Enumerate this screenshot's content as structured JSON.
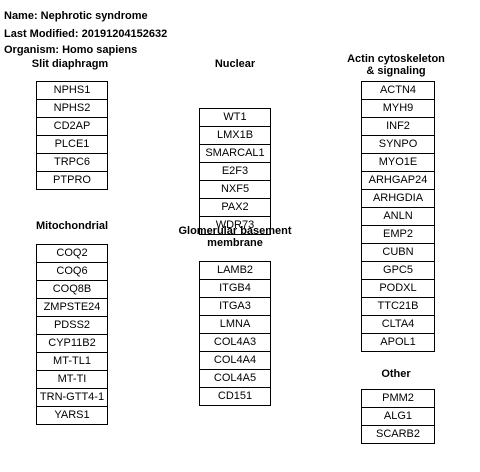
{
  "header": {
    "name": "Name: Nephrotic syndrome",
    "last_modified": "Last Modified: 20191204152632",
    "organism": "Organism: Homo sapiens"
  },
  "groups": {
    "slit": {
      "title": "Slit diaphragm",
      "genes": [
        "NPHS1",
        "NPHS2",
        "CD2AP",
        "PLCE1",
        "TRPC6",
        "PTPRO"
      ]
    },
    "mito": {
      "title": "Mitochondrial",
      "genes": [
        "COQ2",
        "COQ6",
        "COQ8B",
        "ZMPSTE24",
        "PDSS2",
        "CYP11B2",
        "MT-TL1",
        "MT-TI",
        "TRN-GTT4-1",
        "YARS1"
      ]
    },
    "nuclear": {
      "title": "Nuclear",
      "genes": [
        "WT1",
        "LMX1B",
        "SMARCAL1",
        "E2F3",
        "NXF5",
        "PAX2",
        "WDR73"
      ]
    },
    "gbm": {
      "title_line1": "Glomerular basement",
      "title_line2": "membrane",
      "genes": [
        "LAMB2",
        "ITGB4",
        "ITGA3",
        "LMNA",
        "COL4A3",
        "COL4A4",
        "COL4A5",
        "CD151"
      ]
    },
    "actin": {
      "title_line1": "Actin cytoskeleton",
      "title_line2": "& signaling",
      "genes": [
        "ACTN4",
        "MYH9",
        "INF2",
        "SYNPO",
        "MYO1E",
        "ARHGAP24",
        "ARHGDIA",
        "ANLN",
        "EMP2",
        "CUBN",
        "GPC5",
        "PODXL",
        "TTC21B",
        "CLTA4",
        "APOL1"
      ]
    },
    "other": {
      "title": "Other",
      "genes": [
        "PMM2",
        "ALG1",
        "SCARB2"
      ]
    }
  }
}
